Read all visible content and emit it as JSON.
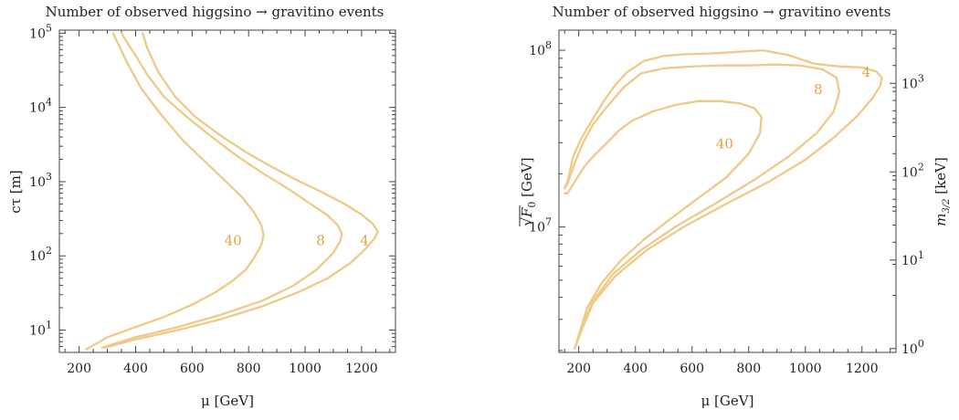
{
  "chart_data": [
    {
      "type": "line",
      "title": "Number of observed higgsino → gravitino events",
      "xlabel": "μ [GeV]",
      "ylabel": "cτ [m]",
      "xlim": [
        130,
        1320
      ],
      "ylim": [
        5,
        110000
      ],
      "yscale": "log",
      "xticks": [
        "200",
        "400",
        "600",
        "800",
        "1000",
        "1200"
      ],
      "yticks": [
        {
          "base": "10",
          "exp": "1"
        },
        {
          "base": "10",
          "exp": "2"
        },
        {
          "base": "10",
          "exp": "3"
        },
        {
          "base": "10",
          "exp": "4"
        },
        {
          "base": "10",
          "exp": "5"
        }
      ],
      "line_color": "#efc987",
      "label_color": "#e3a33f",
      "series": [
        {
          "name": "40",
          "x": [
            225,
            300,
            400,
            500,
            600,
            680,
            740,
            790,
            820,
            845,
            853,
            845,
            820,
            780,
            720,
            650,
            570,
            490,
            420,
            370,
            340,
            320
          ],
          "y": [
            5.5,
            8,
            11,
            15,
            22,
            32,
            45,
            65,
            95,
            140,
            190,
            260,
            380,
            600,
            1000,
            1800,
            3500,
            8000,
            18000,
            40000,
            70000,
            100000
          ]
        },
        {
          "name": "8",
          "x": [
            280,
            400,
            550,
            700,
            850,
            960,
            1040,
            1100,
            1125,
            1130,
            1115,
            1080,
            1020,
            940,
            850,
            760,
            670,
            580,
            500,
            440,
            400,
            370,
            350
          ],
          "y": [
            5.8,
            8,
            11,
            16,
            25,
            40,
            65,
            110,
            160,
            200,
            260,
            350,
            500,
            800,
            1300,
            2200,
            4000,
            7500,
            14000,
            28000,
            50000,
            75000,
            100000
          ]
        },
        {
          "name": "4",
          "x": [
            290,
            400,
            550,
            700,
            850,
            980,
            1080,
            1160,
            1210,
            1245,
            1258,
            1240,
            1200,
            1140,
            1060,
            970,
            880,
            790,
            700,
            610,
            540,
            480,
            440,
            425
          ],
          "y": [
            5.8,
            7.5,
            10,
            14,
            21,
            33,
            50,
            80,
            120,
            170,
            210,
            270,
            360,
            500,
            720,
            1050,
            1600,
            2500,
            4200,
            7500,
            14000,
            30000,
            65000,
            100000
          ]
        }
      ],
      "contour_labels": [
        {
          "text": "40",
          "x": 745,
          "y": 160
        },
        {
          "text": "8",
          "x": 1055,
          "y": 160
        },
        {
          "text": "4",
          "x": 1210,
          "y": 160
        }
      ]
    },
    {
      "type": "line",
      "title": "Number of observed higgsino → gravitino events",
      "xlabel": "μ [GeV]",
      "ylabel": "√F₀ [GeV]",
      "ylabel_base": "F",
      "ylabel_sub": "0",
      "ylabel_unit": " [GeV]",
      "y2label": "m₃₂ [keV]",
      "y2label_base": "m",
      "y2label_sub": "3/2",
      "y2label_unit": " [keV]",
      "xlim": [
        130,
        1320
      ],
      "ylim": [
        1950000,
        130000000
      ],
      "yscale": "log",
      "xticks": [
        "200",
        "400",
        "600",
        "800",
        "1000",
        "1200"
      ],
      "yticks": [
        {
          "base": "10",
          "exp": "7",
          "value": 10000000
        },
        {
          "base": "10",
          "exp": "8",
          "value": 100000000
        }
      ],
      "y2ticks": [
        {
          "base": "10",
          "exp": "0",
          "value": 2050000
        },
        {
          "base": "10",
          "exp": "1",
          "value": 6500000
        },
        {
          "base": "10",
          "exp": "2",
          "value": 20500000
        },
        {
          "base": "10",
          "exp": "3",
          "value": 65000000
        }
      ],
      "line_color": "#efc987",
      "label_color": "#e3a33f",
      "series": [
        {
          "name": "40",
          "x": [
            185,
            205,
            230,
            280,
            350,
            430,
            520,
            620,
            720,
            800,
            840,
            845,
            820,
            770,
            700,
            620,
            540,
            460,
            390,
            340,
            300,
            260,
            220,
            185,
            160,
            150
          ],
          "y": [
            2050000,
            2600000,
            3500000,
            4800000,
            6500000,
            8500000,
            11000000,
            14500000,
            19000000,
            26000000,
            34000000,
            42000000,
            47000000,
            50000000,
            51500000,
            51500000,
            49000000,
            45000000,
            40000000,
            35000000,
            30000000,
            26000000,
            22000000,
            18000000,
            15500000,
            15500000
          ]
        },
        {
          "name": "8",
          "x": [
            185,
            210,
            250,
            320,
            420,
            540,
            680,
            820,
            940,
            1040,
            1100,
            1120,
            1110,
            1060,
            980,
            890,
            800,
            700,
            600,
            500,
            420,
            360,
            300,
            250,
            215,
            190,
            160,
            150
          ],
          "y": [
            2050000,
            2700000,
            3800000,
            5400000,
            7400000,
            10000000,
            13500000,
            18500000,
            25000000,
            34000000,
            45000000,
            58000000,
            70000000,
            78000000,
            82000000,
            83000000,
            82000000,
            82000000,
            81000000,
            79000000,
            74000000,
            62000000,
            48000000,
            38000000,
            30000000,
            24000000,
            17500000,
            16500000
          ]
        },
        {
          "name": "4",
          "x": [
            185,
            210,
            250,
            330,
            440,
            570,
            720,
            870,
            1000,
            1100,
            1180,
            1235,
            1265,
            1270,
            1250,
            1200,
            1120,
            1030,
            940,
            850,
            760,
            670,
            580,
            500,
            430,
            370,
            330,
            290,
            250,
            210,
            180,
            160,
            150
          ],
          "y": [
            2050000,
            2600000,
            3700000,
            5300000,
            7400000,
            10000000,
            13500000,
            18000000,
            24000000,
            32000000,
            42000000,
            53000000,
            63000000,
            70000000,
            76000000,
            80000000,
            81000000,
            84000000,
            94000000,
            100000000,
            98000000,
            96000000,
            95000000,
            93000000,
            87000000,
            75000000,
            64000000,
            52000000,
            41000000,
            32000000,
            25000000,
            18000000,
            16500000
          ]
        }
      ],
      "contour_labels": [
        {
          "text": "40",
          "x": 715,
          "y": 29500000
        },
        {
          "text": "8",
          "x": 1045,
          "y": 60000000
        },
        {
          "text": "4",
          "x": 1215,
          "y": 75000000
        }
      ]
    }
  ]
}
